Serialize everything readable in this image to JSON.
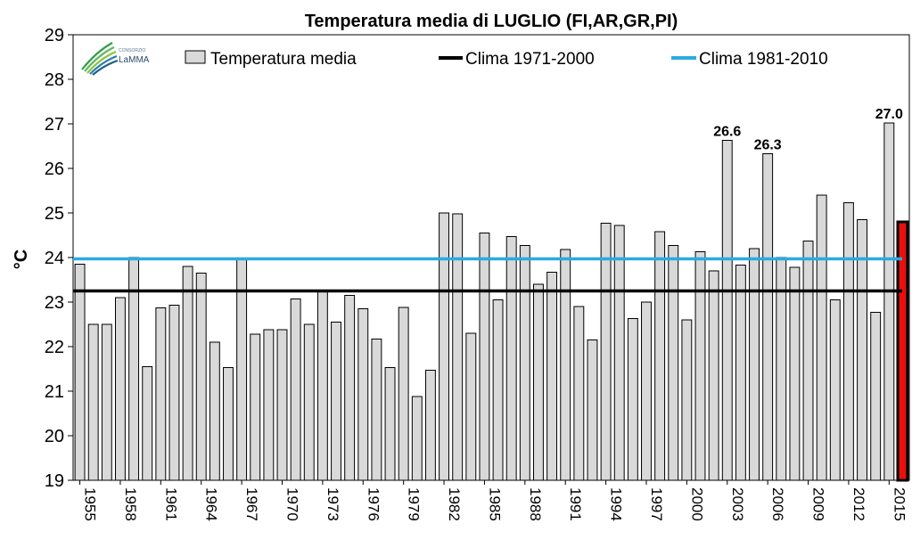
{
  "logo": {
    "text": "LaMMA",
    "small": "CONSORZIO"
  },
  "colors": {
    "bar_fill": "#d9d9d9",
    "bar_stroke": "#000000",
    "highlight_fill": "#e8100f",
    "clima_1971": "#000000",
    "clima_1981": "#29abe2"
  },
  "chart_data": {
    "type": "bar",
    "title": "Temperatura media di LUGLIO (FI,AR,GR,PI)",
    "xlabel": "",
    "ylabel": "°C",
    "ylim": [
      19,
      29
    ],
    "yticks": [
      "19",
      "20",
      "21",
      "22",
      "23",
      "24",
      "25",
      "26",
      "27",
      "28",
      "29"
    ],
    "categories": [
      "1955",
      "1956",
      "1957",
      "1958",
      "1959",
      "1960",
      "1961",
      "1962",
      "1963",
      "1964",
      "1965",
      "1966",
      "1967",
      "1968",
      "1969",
      "1970",
      "1971",
      "1972",
      "1973",
      "1974",
      "1975",
      "1976",
      "1977",
      "1978",
      "1979",
      "1980",
      "1981",
      "1982",
      "1983",
      "1984",
      "1985",
      "1986",
      "1987",
      "1988",
      "1989",
      "1990",
      "1991",
      "1992",
      "1993",
      "1994",
      "1995",
      "1996",
      "1997",
      "1998",
      "1999",
      "2000",
      "2001",
      "2002",
      "2003",
      "2004",
      "2005",
      "2006",
      "2007",
      "2008",
      "2009",
      "2010",
      "2011",
      "2012",
      "2013",
      "2014",
      "2015",
      "2016"
    ],
    "xtick_labels": [
      "1955",
      "",
      "",
      "1958",
      "",
      "",
      "1961",
      "",
      "",
      "1964",
      "",
      "",
      "1967",
      "",
      "",
      "1970",
      "",
      "",
      "1973",
      "",
      "",
      "1976",
      "",
      "",
      "1979",
      "",
      "",
      "1982",
      "",
      "",
      "1985",
      "",
      "",
      "1988",
      "",
      "",
      "1991",
      "",
      "",
      "1994",
      "",
      "",
      "1997",
      "",
      "",
      "2000",
      "",
      "",
      "2003",
      "",
      "",
      "2006",
      "",
      "",
      "2009",
      "",
      "",
      "2012",
      "",
      "",
      "2015",
      ""
    ],
    "series": [
      {
        "name": "Temperatura media",
        "values": [
          23.85,
          22.5,
          22.5,
          23.1,
          24.0,
          21.55,
          22.87,
          22.93,
          23.8,
          23.65,
          22.1,
          21.53,
          23.95,
          22.28,
          22.38,
          22.38,
          23.07,
          22.5,
          23.27,
          22.55,
          23.15,
          22.85,
          22.17,
          21.53,
          22.88,
          20.88,
          21.47,
          25.0,
          24.98,
          22.3,
          24.55,
          23.05,
          24.47,
          24.27,
          23.4,
          23.67,
          24.18,
          22.9,
          22.15,
          24.77,
          24.72,
          22.63,
          23.0,
          24.58,
          24.27,
          22.6,
          24.13,
          23.7,
          26.63,
          23.83,
          24.2,
          26.33,
          24.0,
          23.78,
          24.37,
          25.4,
          23.05,
          25.23,
          24.85,
          22.77,
          27.02,
          24.8
        ]
      },
      {
        "name": "Clima 1971-2000",
        "value": 23.25
      },
      {
        "name": "Clima 1981-2010",
        "value": 23.97
      }
    ],
    "highlight_index": 61,
    "annotations": [
      {
        "index": 48,
        "text": "26.6"
      },
      {
        "index": 51,
        "text": "26.3"
      },
      {
        "index": 60,
        "text": "27.0"
      }
    ],
    "legend": {
      "position": "top",
      "items": [
        "Temperatura media",
        "Clima 1971-2000",
        "Clima 1981-2010"
      ]
    }
  }
}
